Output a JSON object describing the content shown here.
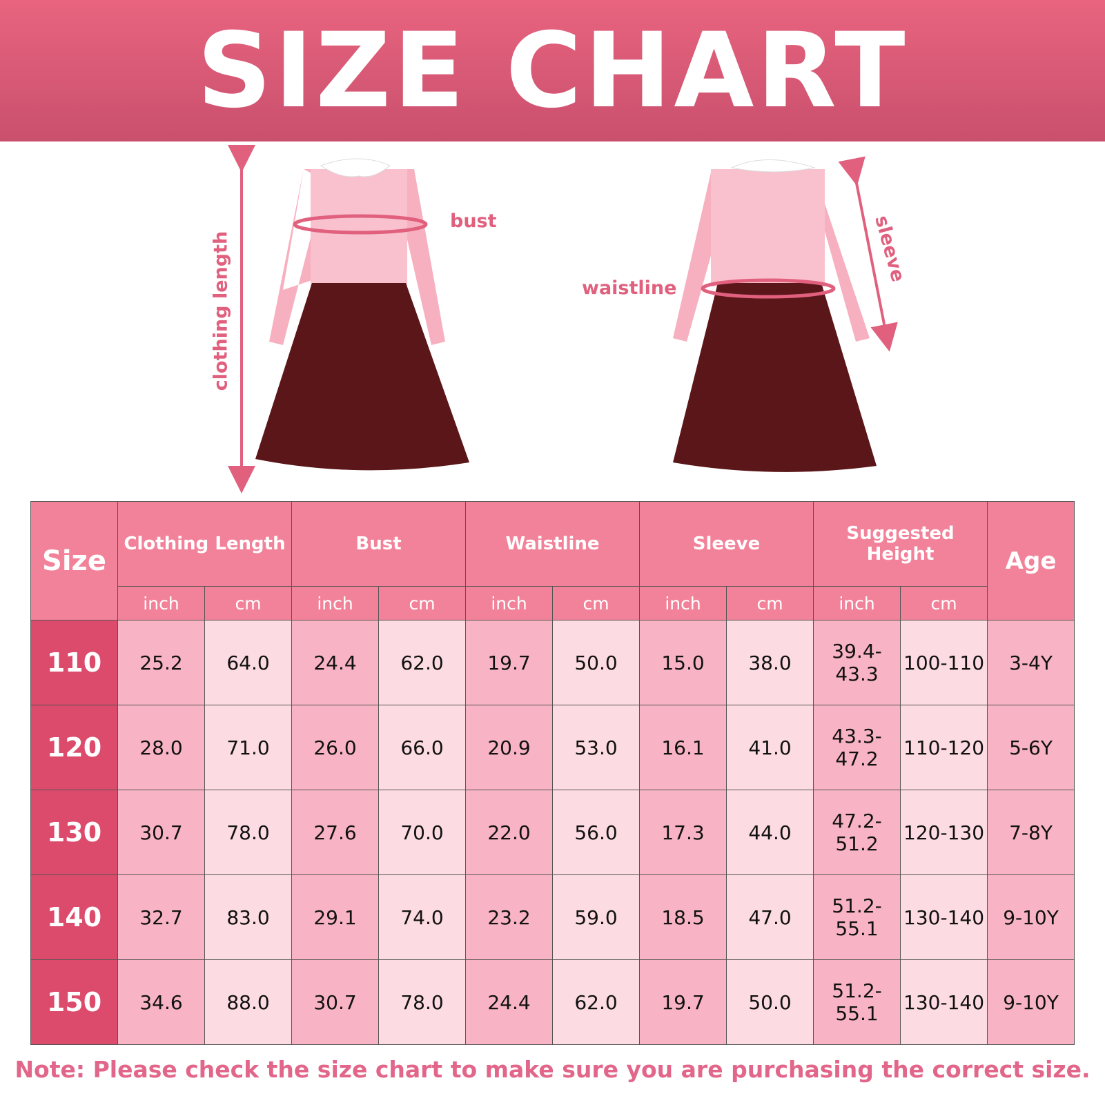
{
  "title": "SIZE CHART",
  "labels": {
    "clothing_length": "clothing length",
    "bust": "bust",
    "waistline": "waistline",
    "sleeve": "sleeve"
  },
  "table": {
    "size_header": "Size",
    "age_header": "Age",
    "groups": [
      "Clothing Length",
      "Bust",
      "Waistline",
      "Sleeve",
      "Suggested Height"
    ],
    "units": [
      "inch",
      "cm"
    ],
    "rows": [
      {
        "size": "110",
        "v": [
          "25.2",
          "64.0",
          "24.4",
          "62.0",
          "19.7",
          "50.0",
          "15.0",
          "38.0",
          "39.4-43.3",
          "100-110"
        ],
        "age": "3-4Y"
      },
      {
        "size": "120",
        "v": [
          "28.0",
          "71.0",
          "26.0",
          "66.0",
          "20.9",
          "53.0",
          "16.1",
          "41.0",
          "43.3-47.2",
          "110-120"
        ],
        "age": "5-6Y"
      },
      {
        "size": "130",
        "v": [
          "30.7",
          "78.0",
          "27.6",
          "70.0",
          "22.0",
          "56.0",
          "17.3",
          "44.0",
          "47.2-51.2",
          "120-130"
        ],
        "age": "7-8Y"
      },
      {
        "size": "140",
        "v": [
          "32.7",
          "83.0",
          "29.1",
          "74.0",
          "23.2",
          "59.0",
          "18.5",
          "47.0",
          "51.2-55.1",
          "130-140"
        ],
        "age": "9-10Y"
      },
      {
        "size": "150",
        "v": [
          "34.6",
          "88.0",
          "30.7",
          "78.0",
          "24.4",
          "62.0",
          "19.7",
          "50.0",
          "51.2-55.1",
          "130-140"
        ],
        "age": "9-10Y"
      }
    ]
  },
  "note": "Note: Please check the size chart to make sure you are purchasing the correct size.",
  "colors": {
    "header": "#f28299",
    "size_cell": "#dc4b6b",
    "cell_dark": "#f8b4c4",
    "cell_light": "#fcdbe2",
    "accent": "#e0607e"
  }
}
